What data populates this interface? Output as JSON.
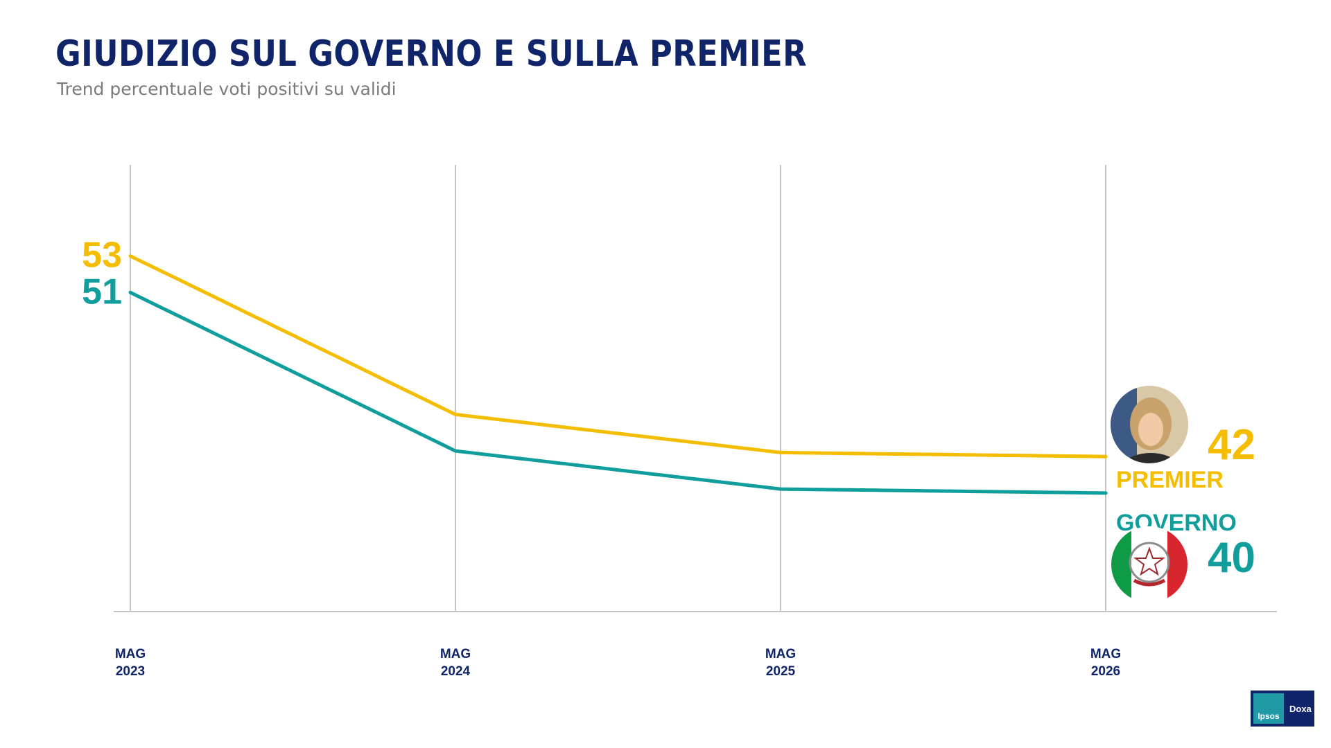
{
  "title": "GIUDIZIO SUL GOVERNO E SULLA PREMIER",
  "subtitle": "Trend percentuale voti positivi su validi",
  "colors": {
    "premier": "#f5bd00",
    "governo": "#109e9d",
    "navy": "#10246a",
    "grid": "#c4c4c4"
  },
  "chart_data": {
    "type": "line",
    "categories": [
      "MAG\n2023",
      "MAG\n2024",
      "MAG\n2025",
      "MAG\n2026"
    ],
    "series": [
      {
        "name": "PREMIER",
        "points": [
          {
            "category": "MAG\n2023",
            "value": 53
          },
          {
            "category": "MAG\n2026",
            "value": 42
          }
        ],
        "color": "#f5bd00",
        "icon": "premier-portrait"
      },
      {
        "name": "GOVERNO",
        "points": [
          {
            "category": "MAG\n2023",
            "value": 51
          },
          {
            "category": "MAG\n2026",
            "value": 40
          }
        ],
        "color": "#109e9d",
        "icon": "italian-emblem"
      }
    ],
    "grid": true
  },
  "logo": {
    "left": "Ipsos",
    "right": "Doxa"
  }
}
